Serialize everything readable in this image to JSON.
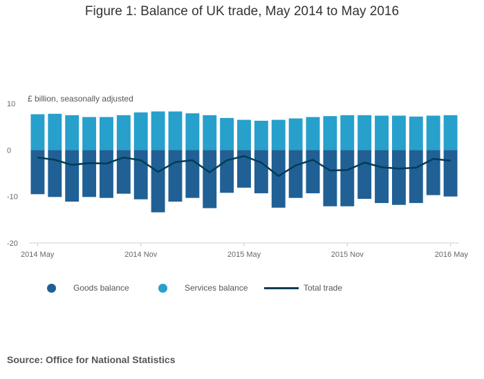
{
  "chart_data": {
    "type": "bar",
    "title": "Figure 1: Balance of UK trade, May 2014 to May 2016",
    "unit_label": "£ billion, seasonally adjusted",
    "ylim": [
      -20,
      10
    ],
    "yticks": [
      10,
      0,
      -10,
      -20
    ],
    "x_tick_labels": [
      {
        "index": 0,
        "label": "2014 May"
      },
      {
        "index": 6,
        "label": "2014 Nov"
      },
      {
        "index": 12,
        "label": "2015 May"
      },
      {
        "index": 18,
        "label": "2015 Nov"
      },
      {
        "index": 24,
        "label": "2016 May"
      }
    ],
    "categories": [
      "2014 May",
      "2014 Jun",
      "2014 Jul",
      "2014 Aug",
      "2014 Sep",
      "2014 Oct",
      "2014 Nov",
      "2014 Dec",
      "2015 Jan",
      "2015 Feb",
      "2015 Mar",
      "2015 Apr",
      "2015 May",
      "2015 Jun",
      "2015 Jul",
      "2015 Aug",
      "2015 Sep",
      "2015 Oct",
      "2015 Nov",
      "2015 Dec",
      "2016 Jan",
      "2016 Feb",
      "2016 Mar",
      "2016 Apr",
      "2016 May"
    ],
    "series": [
      {
        "name": "Goods balance",
        "type": "bar",
        "values": [
          -9.5,
          -10.1,
          -11.1,
          -10.1,
          -10.3,
          -9.4,
          -10.6,
          -13.4,
          -11.1,
          -10.3,
          -12.5,
          -9.2,
          -8.1,
          -9.3,
          -12.4,
          -10.3,
          -9.3,
          -12.1,
          -12.1,
          -10.5,
          -11.4,
          -11.8,
          -11.4,
          -9.7,
          -10.0
        ]
      },
      {
        "name": "Services balance",
        "type": "bar",
        "values": [
          7.7,
          7.8,
          7.5,
          7.1,
          7.1,
          7.5,
          8.1,
          8.3,
          8.3,
          7.9,
          7.5,
          6.9,
          6.5,
          6.3,
          6.5,
          6.8,
          7.1,
          7.3,
          7.5,
          7.5,
          7.4,
          7.4,
          7.2,
          7.4,
          7.5
        ]
      },
      {
        "name": "Total trade",
        "type": "line",
        "values": [
          -1.6,
          -2.1,
          -3.2,
          -2.8,
          -2.9,
          -1.6,
          -2.2,
          -4.7,
          -2.6,
          -2.2,
          -4.8,
          -2.2,
          -1.3,
          -2.7,
          -5.6,
          -3.3,
          -2.1,
          -4.4,
          -4.3,
          -2.7,
          -3.7,
          -4.0,
          -3.8,
          -1.9,
          -2.3
        ]
      }
    ],
    "colors": {
      "goods": "#206095",
      "services": "#27a0cc",
      "total": "#003c57"
    },
    "grid": false,
    "legend_position": "bottom"
  },
  "source_text": "Source: Office for National Statistics"
}
